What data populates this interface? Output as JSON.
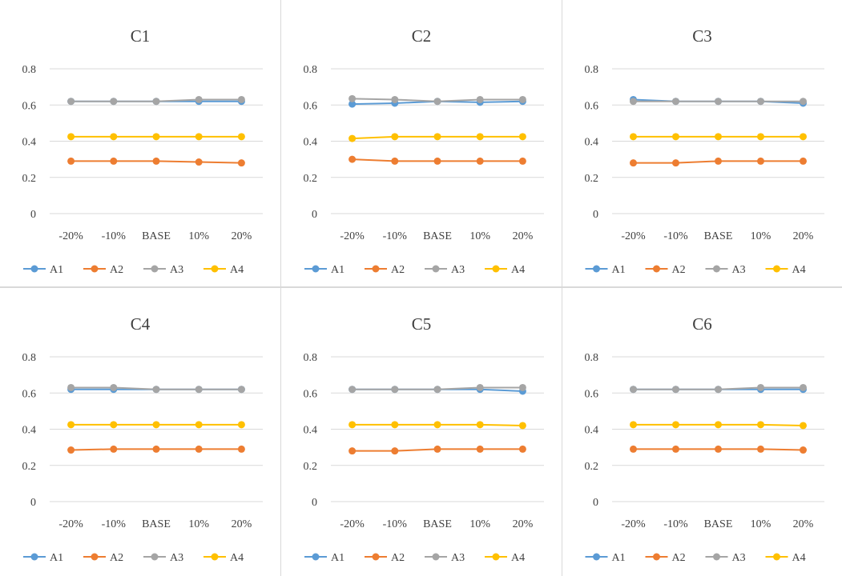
{
  "chart_data": [
    {
      "type": "line",
      "title": "C1",
      "categories": [
        "-20%",
        "-10%",
        "BASE",
        "10%",
        "20%"
      ],
      "ylim": [
        0,
        0.8
      ],
      "yticks": [
        "0.8",
        "0.6",
        "0.4",
        "0.2",
        "0"
      ],
      "grid": true,
      "legend": "bottom",
      "series": [
        {
          "name": "A1",
          "color": "#5b9bd5",
          "values": [
            0.62,
            0.62,
            0.62,
            0.62,
            0.62
          ]
        },
        {
          "name": "A2",
          "color": "#ed7d31",
          "values": [
            0.29,
            0.29,
            0.29,
            0.285,
            0.28
          ]
        },
        {
          "name": "A3",
          "color": "#a5a5a5",
          "values": [
            0.62,
            0.62,
            0.62,
            0.63,
            0.63
          ]
        },
        {
          "name": "A4",
          "color": "#ffc000",
          "values": [
            0.425,
            0.425,
            0.425,
            0.425,
            0.425
          ]
        }
      ]
    },
    {
      "type": "line",
      "title": "C2",
      "categories": [
        "-20%",
        "-10%",
        "BASE",
        "10%",
        "20%"
      ],
      "ylim": [
        0,
        0.8
      ],
      "yticks": [
        "0.8",
        "0.6",
        "0.4",
        "0.2",
        "0"
      ],
      "grid": true,
      "legend": "bottom",
      "series": [
        {
          "name": "A1",
          "color": "#5b9bd5",
          "values": [
            0.605,
            0.61,
            0.62,
            0.615,
            0.62
          ]
        },
        {
          "name": "A2",
          "color": "#ed7d31",
          "values": [
            0.3,
            0.29,
            0.29,
            0.29,
            0.29
          ]
        },
        {
          "name": "A3",
          "color": "#a5a5a5",
          "values": [
            0.635,
            0.63,
            0.62,
            0.63,
            0.63
          ]
        },
        {
          "name": "A4",
          "color": "#ffc000",
          "values": [
            0.415,
            0.425,
            0.425,
            0.425,
            0.425
          ]
        }
      ]
    },
    {
      "type": "line",
      "title": "C3",
      "categories": [
        "-20%",
        "-10%",
        "BASE",
        "10%",
        "20%"
      ],
      "ylim": [
        0,
        0.8
      ],
      "yticks": [
        "0.8",
        "0.6",
        "0.4",
        "0.2",
        "0"
      ],
      "grid": true,
      "legend": "bottom",
      "series": [
        {
          "name": "A1",
          "color": "#5b9bd5",
          "values": [
            0.63,
            0.62,
            0.62,
            0.62,
            0.61
          ]
        },
        {
          "name": "A2",
          "color": "#ed7d31",
          "values": [
            0.28,
            0.28,
            0.29,
            0.29,
            0.29
          ]
        },
        {
          "name": "A3",
          "color": "#a5a5a5",
          "values": [
            0.62,
            0.62,
            0.62,
            0.62,
            0.62
          ]
        },
        {
          "name": "A4",
          "color": "#ffc000",
          "values": [
            0.425,
            0.425,
            0.425,
            0.425,
            0.425
          ]
        }
      ]
    },
    {
      "type": "line",
      "title": "C4",
      "categories": [
        "-20%",
        "-10%",
        "BASE",
        "10%",
        "20%"
      ],
      "ylim": [
        0,
        0.8
      ],
      "yticks": [
        "0.8",
        "0.6",
        "0.4",
        "0.2",
        "0"
      ],
      "grid": true,
      "legend": "bottom",
      "series": [
        {
          "name": "A1",
          "color": "#5b9bd5",
          "values": [
            0.62,
            0.62,
            0.62,
            0.62,
            0.62
          ]
        },
        {
          "name": "A2",
          "color": "#ed7d31",
          "values": [
            0.285,
            0.29,
            0.29,
            0.29,
            0.29
          ]
        },
        {
          "name": "A3",
          "color": "#a5a5a5",
          "values": [
            0.63,
            0.63,
            0.62,
            0.62,
            0.62
          ]
        },
        {
          "name": "A4",
          "color": "#ffc000",
          "values": [
            0.425,
            0.425,
            0.425,
            0.425,
            0.425
          ]
        }
      ]
    },
    {
      "type": "line",
      "title": "C5",
      "categories": [
        "-20%",
        "-10%",
        "BASE",
        "10%",
        "20%"
      ],
      "ylim": [
        0,
        0.8
      ],
      "yticks": [
        "0.8",
        "0.6",
        "0.4",
        "0.2",
        "0"
      ],
      "grid": true,
      "legend": "bottom",
      "series": [
        {
          "name": "A1",
          "color": "#5b9bd5",
          "values": [
            0.62,
            0.62,
            0.62,
            0.62,
            0.61
          ]
        },
        {
          "name": "A2",
          "color": "#ed7d31",
          "values": [
            0.28,
            0.28,
            0.29,
            0.29,
            0.29
          ]
        },
        {
          "name": "A3",
          "color": "#a5a5a5",
          "values": [
            0.62,
            0.62,
            0.62,
            0.63,
            0.63
          ]
        },
        {
          "name": "A4",
          "color": "#ffc000",
          "values": [
            0.425,
            0.425,
            0.425,
            0.425,
            0.42
          ]
        }
      ]
    },
    {
      "type": "line",
      "title": "C6",
      "categories": [
        "-20%",
        "-10%",
        "BASE",
        "10%",
        "20%"
      ],
      "ylim": [
        0,
        0.8
      ],
      "yticks": [
        "0.8",
        "0.6",
        "0.4",
        "0.2",
        "0"
      ],
      "grid": true,
      "legend": "bottom",
      "series": [
        {
          "name": "A1",
          "color": "#5b9bd5",
          "values": [
            0.62,
            0.62,
            0.62,
            0.62,
            0.62
          ]
        },
        {
          "name": "A2",
          "color": "#ed7d31",
          "values": [
            0.29,
            0.29,
            0.29,
            0.29,
            0.285
          ]
        },
        {
          "name": "A3",
          "color": "#a5a5a5",
          "values": [
            0.62,
            0.62,
            0.62,
            0.63,
            0.63
          ]
        },
        {
          "name": "A4",
          "color": "#ffc000",
          "values": [
            0.425,
            0.425,
            0.425,
            0.425,
            0.42
          ]
        }
      ]
    }
  ]
}
